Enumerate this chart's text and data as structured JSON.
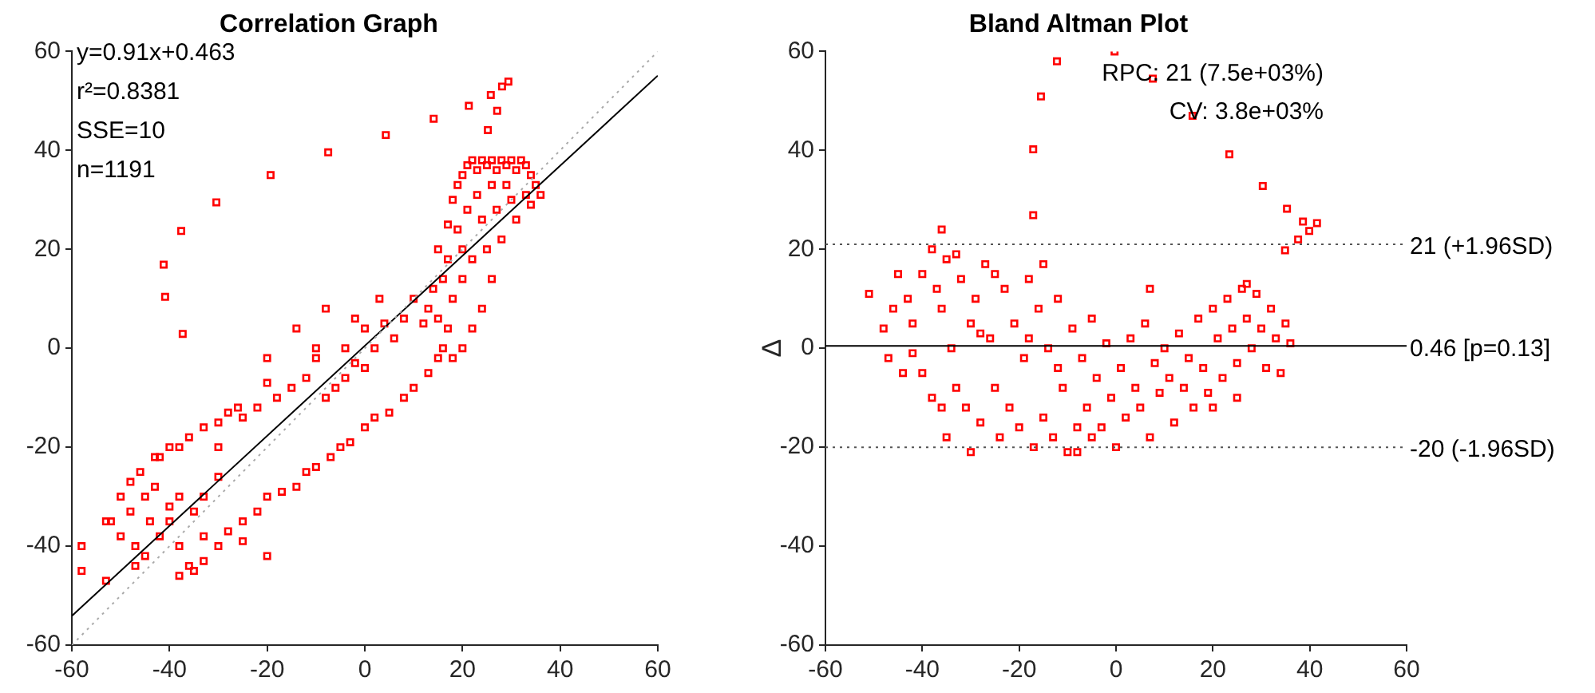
{
  "chart_data": [
    {
      "type": "scatter",
      "title": "Correlation Graph",
      "xlim": [
        -60,
        60
      ],
      "ylim": [
        -60,
        60
      ],
      "xticks": [
        -60,
        -40,
        -20,
        0,
        20,
        40,
        60
      ],
      "yticks": [
        -60,
        -40,
        -20,
        0,
        20,
        40,
        60
      ],
      "grid": false,
      "marker": "square",
      "legend": false,
      "annotations": [
        "y=0.91x+0.463",
        "r²=0.8381",
        "SSE=10",
        "n=1191"
      ],
      "series": [
        {
          "type": "line",
          "color": "#aaaaaa",
          "line_style": "dotted",
          "marker": "none",
          "x": [
            -60,
            60
          ],
          "values": [
            -60,
            60
          ]
        },
        {
          "type": "line",
          "color": "#000000",
          "line_style": "solid",
          "marker": "none",
          "x": [
            -60,
            60
          ],
          "values": [
            -54.1,
            55.1
          ]
        },
        {
          "type": "scatter",
          "color": "#ff0000",
          "x": [
            29.4,
            28.1,
            25.8,
            21.3,
            27.1,
            14.1,
            25.2,
            4.3,
            -7.5,
            -19.3,
            -30.4,
            -37.6,
            -41.2,
            -40.9,
            -37.3,
            15,
            17,
            18,
            19,
            20,
            21,
            22,
            23,
            24,
            25,
            26,
            27,
            28,
            29,
            30,
            31,
            32,
            33,
            34,
            35,
            33,
            30,
            27,
            24,
            21,
            19,
            17,
            16,
            14,
            13,
            12,
            15,
            18,
            20,
            22,
            25,
            28,
            31,
            34,
            36,
            26,
            24,
            22,
            20,
            18,
            29,
            23,
            26,
            20,
            17,
            10,
            8,
            6,
            4,
            2,
            0,
            -2,
            -4,
            -6,
            -8,
            -10,
            -12,
            -15,
            -18,
            -20,
            -22,
            -25,
            -28,
            -30,
            -33,
            -36,
            -38,
            -40,
            -43,
            -46,
            -48,
            -50,
            -52,
            -50,
            -47,
            -45,
            -42,
            -40,
            -38,
            -35,
            -33,
            -30,
            -28,
            -25,
            -22,
            -20,
            -17,
            -14,
            -12,
            -10,
            -7,
            -5,
            -3,
            0,
            2,
            5,
            8,
            10,
            13,
            15,
            16,
            -45,
            -43,
            -40,
            -38,
            -36,
            -33,
            -44,
            -48,
            -53,
            -58,
            -58,
            -53,
            -47,
            -38,
            -25,
            -20,
            -30,
            -26,
            -20,
            -14,
            -10,
            -8,
            -4,
            -2,
            0,
            3,
            -35,
            -33,
            -30,
            -42
          ],
          "values": [
            53.9,
            52.9,
            51.2,
            49,
            48,
            46.4,
            44.1,
            43.1,
            39.6,
            35,
            29.5,
            23.7,
            16.9,
            10.4,
            2.9,
            20,
            25,
            30,
            33,
            35,
            37,
            38,
            36,
            38,
            37,
            38,
            36,
            38,
            37,
            38,
            36,
            38,
            37,
            35,
            33,
            31,
            30,
            28,
            26,
            28,
            24,
            18,
            14,
            12,
            8,
            5,
            6,
            10,
            14,
            18,
            20,
            22,
            26,
            29,
            31,
            14,
            8,
            4,
            0,
            -2,
            33,
            31,
            33,
            20,
            4,
            10,
            6,
            2,
            5,
            0,
            -4,
            -3,
            -6,
            -8,
            -10,
            -2,
            -6,
            -8,
            -10,
            -7,
            -12,
            -14,
            -13,
            -15,
            -16,
            -18,
            -20,
            -20,
            -22,
            -25,
            -27,
            -30,
            -35,
            -38,
            -40,
            -42,
            -38,
            -35,
            -30,
            -33,
            -38,
            -40,
            -37,
            -35,
            -33,
            -30,
            -29,
            -28,
            -25,
            -24,
            -22,
            -20,
            -19,
            -16,
            -14,
            -13,
            -10,
            -8,
            -5,
            -2,
            0,
            -30,
            -28,
            -32,
            -40,
            -44,
            -30,
            -35,
            -33,
            -35,
            -40,
            -45,
            -47,
            -44,
            -46,
            -39,
            -42,
            -20,
            -12,
            -2,
            4,
            0,
            8,
            0,
            6,
            4,
            10,
            -45,
            -43,
            -26,
            -22
          ]
        }
      ]
    },
    {
      "type": "scatter",
      "title": "Bland Altman Plot",
      "ylabel": "Δ",
      "xlim": [
        -60,
        60
      ],
      "ylim": [
        -60,
        60
      ],
      "xticks": [
        -60,
        -40,
        -20,
        0,
        20,
        40,
        60
      ],
      "yticks": [
        -60,
        -40,
        -20,
        0,
        20,
        40,
        60
      ],
      "grid": false,
      "marker": "square",
      "legend": false,
      "annotations": [
        "RPC: 21 (7.5e+03%)",
        "CV: 3.8e+03%"
      ],
      "ref_lines": [
        {
          "axis": "y",
          "value": 21,
          "label": "21 (+1.96SD)",
          "color": "#555555",
          "line_style": "dotted"
        },
        {
          "axis": "y",
          "value": 0.46,
          "label": "0.46 [p=0.13]",
          "color": "#000000",
          "line_style": "solid"
        },
        {
          "axis": "y",
          "value": -20,
          "label": "-20 (-1.96SD)",
          "color": "#555555",
          "line_style": "dotted"
        }
      ],
      "series": [
        {
          "type": "scatter",
          "color": "#ff0000",
          "x": [
            -0.3,
            -12.2,
            -15.5,
            7.6,
            15.8,
            -17.1,
            23.4,
            30.3,
            35.3,
            38.6,
            41.5,
            39.9,
            37.6,
            34.9,
            -17.1,
            -51,
            -48,
            -47,
            -45,
            -43,
            -42,
            -40,
            -40,
            -38,
            -37,
            -36,
            -35,
            -34,
            -33,
            -32,
            -31,
            -30,
            -30,
            -29,
            -28,
            -27,
            -26,
            -25,
            -24,
            -23,
            -22,
            -21,
            -20,
            -19,
            -18,
            -17,
            -16,
            -15,
            -14,
            -13,
            -12,
            -11,
            -10,
            -9,
            -8,
            -7,
            -6,
            -5,
            -4,
            -3,
            -2,
            -1,
            0,
            1,
            2,
            3,
            4,
            5,
            6,
            7,
            8,
            9,
            10,
            11,
            12,
            13,
            14,
            15,
            16,
            17,
            18,
            19,
            20,
            21,
            22,
            23,
            24,
            25,
            26,
            27,
            28,
            29,
            30,
            31,
            32,
            33,
            34,
            35,
            36,
            -44,
            -38,
            -35,
            -36,
            -42,
            -46,
            -28,
            -25,
            -33,
            -36,
            -18,
            -12,
            -15,
            7,
            -5,
            -8,
            25,
            20,
            27
          ],
          "values": [
            60,
            58,
            50.9,
            54.5,
            47,
            40.2,
            39.2,
            32.8,
            28.2,
            25.6,
            25.3,
            23.7,
            22,
            19.8,
            26.9,
            11,
            4,
            -2,
            15,
            10,
            5,
            -5,
            15,
            20,
            12,
            8,
            18,
            0,
            -8,
            14,
            -12,
            5,
            -21,
            10,
            -15,
            17,
            2,
            -8,
            -18,
            12,
            -12,
            5,
            -16,
            -2,
            14,
            -20,
            8,
            -14,
            0,
            -18,
            10,
            -8,
            -21,
            4,
            -16,
            -2,
            -12,
            6,
            -6,
            -16,
            1,
            -10,
            -20,
            -4,
            -14,
            2,
            -8,
            -12,
            5,
            -18,
            -3,
            -9,
            0,
            -6,
            -15,
            3,
            -8,
            -2,
            -12,
            6,
            -4,
            -9,
            8,
            2,
            -6,
            10,
            4,
            -3,
            12,
            6,
            0,
            11,
            4,
            -4,
            8,
            2,
            -5,
            5,
            1,
            -5,
            -10,
            -18,
            -12,
            -1,
            8,
            3,
            15,
            19,
            24,
            2,
            -4,
            17,
            12,
            -18,
            -21,
            -10,
            -12,
            13
          ]
        }
      ]
    }
  ]
}
